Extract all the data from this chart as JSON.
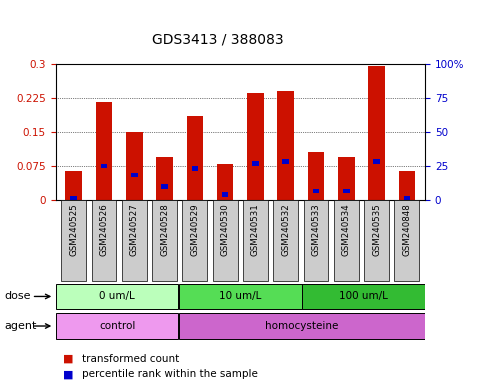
{
  "title": "GDS3413 / 388083",
  "samples": [
    "GSM240525",
    "GSM240526",
    "GSM240527",
    "GSM240528",
    "GSM240529",
    "GSM240530",
    "GSM240531",
    "GSM240532",
    "GSM240533",
    "GSM240534",
    "GSM240535",
    "GSM240848"
  ],
  "red_values": [
    0.065,
    0.215,
    0.15,
    0.095,
    0.185,
    0.08,
    0.235,
    0.24,
    0.105,
    0.095,
    0.295,
    0.065
  ],
  "blue_values": [
    0.005,
    0.075,
    0.055,
    0.03,
    0.07,
    0.012,
    0.08,
    0.085,
    0.02,
    0.02,
    0.085,
    0.005
  ],
  "ylim_left": [
    0,
    0.3
  ],
  "ylim_right": [
    0,
    100
  ],
  "yticks_left": [
    0,
    0.075,
    0.15,
    0.225,
    0.3
  ],
  "ytick_labels_left": [
    "0",
    "0.075",
    "0.15",
    "0.225",
    "0.3"
  ],
  "yticks_right": [
    0,
    25,
    50,
    75,
    100
  ],
  "ytick_labels_right": [
    "0",
    "25",
    "50",
    "75",
    "100%"
  ],
  "red_color": "#cc1100",
  "blue_color": "#0000cc",
  "bar_width": 0.55,
  "dose_groups": [
    {
      "label": "0 um/L",
      "start": 0,
      "end": 4,
      "color": "#bbffbb"
    },
    {
      "label": "10 um/L",
      "start": 4,
      "end": 8,
      "color": "#55dd55"
    },
    {
      "label": "100 um/L",
      "start": 8,
      "end": 12,
      "color": "#33bb33"
    }
  ],
  "agent_groups": [
    {
      "label": "control",
      "start": 0,
      "end": 4,
      "color": "#ee99ee"
    },
    {
      "label": "homocysteine",
      "start": 4,
      "end": 12,
      "color": "#cc66cc"
    }
  ],
  "legend_red": "transformed count",
  "legend_blue": "percentile rank within the sample",
  "dose_label": "dose",
  "agent_label": "agent",
  "bg_color": "#ffffff",
  "plot_bg": "#ffffff",
  "tick_label_bg": "#cccccc",
  "title_fontsize": 10,
  "axis_fontsize": 7.5,
  "legend_fontsize": 7.5
}
